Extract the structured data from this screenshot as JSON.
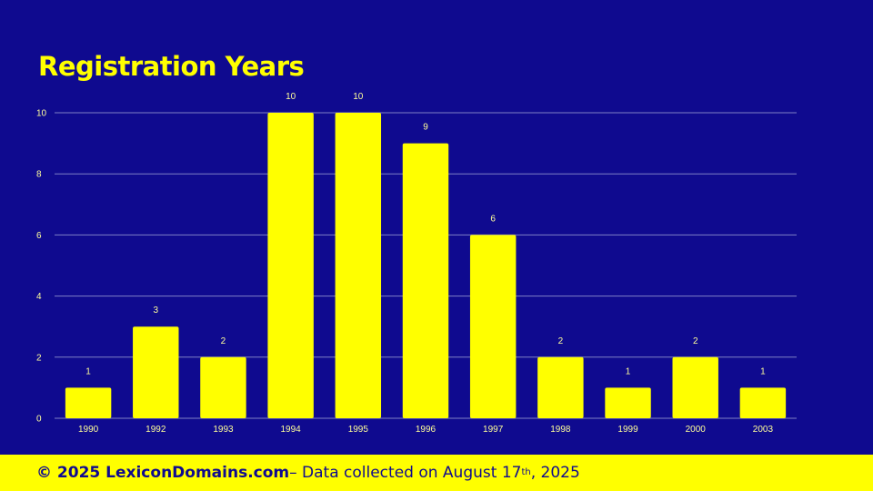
{
  "chart_data": {
    "type": "bar",
    "title": "Registration Years",
    "categories": [
      "1990",
      "1992",
      "1993",
      "1994",
      "1995",
      "1996",
      "1997",
      "1998",
      "1999",
      "2000",
      "2003"
    ],
    "values": [
      1,
      3,
      2,
      10,
      10,
      9,
      6,
      2,
      1,
      2,
      1
    ],
    "yticks": [
      0,
      2,
      4,
      6,
      8,
      10
    ],
    "ylim": [
      0,
      10
    ],
    "xlabel": "",
    "ylabel": "",
    "grid": true,
    "legend": "none",
    "bar_color": "#ffff00",
    "background_color": "#0f0a8f"
  },
  "footer": {
    "copyright": "© 2025 LexiconDomains.com",
    "text_before": " – Data collected on August 17",
    "superscript": "th",
    "text_after": ", 2025"
  }
}
